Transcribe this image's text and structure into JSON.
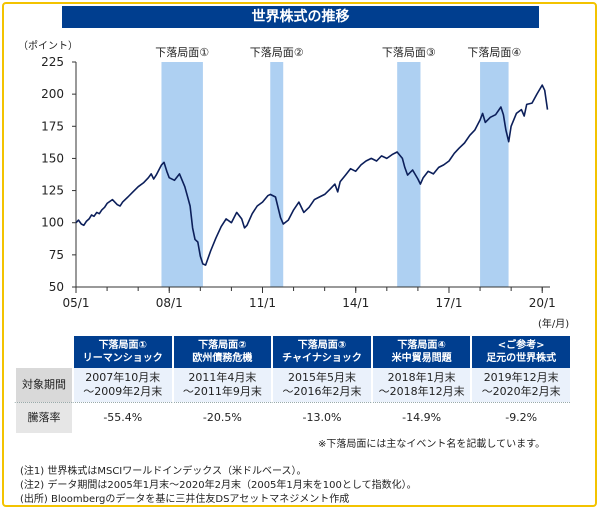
{
  "title": "世界株式の推移",
  "chart_data": {
    "type": "line",
    "ylabel": "（ポイント）",
    "xlabel": "(年/月)",
    "ylim": [
      50,
      225
    ],
    "yticks": [
      50,
      75,
      100,
      125,
      150,
      175,
      200,
      225
    ],
    "xlim": [
      2005.0,
      2020.25
    ],
    "xticks": [
      {
        "label": "05/1",
        "x": 2005.0
      },
      {
        "label": "08/1",
        "x": 2008.0
      },
      {
        "label": "11/1",
        "x": 2011.0
      },
      {
        "label": "14/1",
        "x": 2014.0
      },
      {
        "label": "17/1",
        "x": 2017.0
      },
      {
        "label": "20/1",
        "x": 2020.0
      }
    ],
    "phases": [
      {
        "label": "下落局面①",
        "start": 2007.75,
        "end": 2009.083
      },
      {
        "label": "下落局面②",
        "start": 2011.25,
        "end": 2011.667
      },
      {
        "label": "下落局面③",
        "start": 2015.333,
        "end": 2016.083
      },
      {
        "label": "下落局面④",
        "start": 2018.0,
        "end": 2018.917
      }
    ],
    "series": [
      {
        "name": "MSCIワールドインデックス（米ドルベース）",
        "x": [
          2005.0,
          2005.08,
          2005.17,
          2005.25,
          2005.33,
          2005.42,
          2005.5,
          2005.58,
          2005.67,
          2005.75,
          2005.83,
          2005.92,
          2006.0,
          2006.17,
          2006.33,
          2006.42,
          2006.5,
          2006.67,
          2006.83,
          2007.0,
          2007.17,
          2007.33,
          2007.42,
          2007.5,
          2007.58,
          2007.75,
          2007.83,
          2007.92,
          2008.0,
          2008.17,
          2008.33,
          2008.5,
          2008.58,
          2008.67,
          2008.75,
          2008.83,
          2008.92,
          2009.0,
          2009.08,
          2009.17,
          2009.33,
          2009.5,
          2009.67,
          2009.83,
          2010.0,
          2010.17,
          2010.33,
          2010.42,
          2010.5,
          2010.67,
          2010.83,
          2011.0,
          2011.17,
          2011.25,
          2011.42,
          2011.58,
          2011.67,
          2011.83,
          2012.0,
          2012.17,
          2012.33,
          2012.5,
          2012.67,
          2012.83,
          2013.0,
          2013.17,
          2013.33,
          2013.42,
          2013.5,
          2013.67,
          2013.83,
          2014.0,
          2014.17,
          2014.33,
          2014.5,
          2014.67,
          2014.83,
          2015.0,
          2015.17,
          2015.33,
          2015.5,
          2015.58,
          2015.67,
          2015.83,
          2016.0,
          2016.08,
          2016.17,
          2016.33,
          2016.5,
          2016.67,
          2016.83,
          2017.0,
          2017.17,
          2017.33,
          2017.5,
          2017.67,
          2017.83,
          2018.0,
          2018.08,
          2018.17,
          2018.33,
          2018.5,
          2018.67,
          2018.75,
          2018.83,
          2018.92,
          2019.0,
          2019.17,
          2019.33,
          2019.42,
          2019.5,
          2019.67,
          2019.83,
          2020.0,
          2020.08,
          2020.17
        ],
        "y": [
          100,
          102,
          99,
          98,
          101,
          103,
          106,
          105,
          108,
          107,
          110,
          112,
          115,
          118,
          114,
          113,
          116,
          120,
          124,
          128,
          131,
          135,
          138,
          134,
          137,
          145,
          147,
          140,
          135,
          133,
          138,
          128,
          121,
          113,
          96,
          87,
          85,
          74,
          68,
          67,
          78,
          88,
          97,
          103,
          100,
          108,
          103,
          96,
          98,
          107,
          113,
          116,
          121,
          122,
          120,
          104,
          99,
          102,
          110,
          116,
          108,
          112,
          118,
          120,
          122,
          126,
          130,
          124,
          132,
          137,
          142,
          140,
          145,
          148,
          150,
          148,
          152,
          150,
          153,
          155,
          150,
          143,
          137,
          141,
          134,
          130,
          135,
          140,
          138,
          143,
          145,
          148,
          154,
          158,
          162,
          168,
          172,
          180,
          185,
          178,
          182,
          184,
          190,
          184,
          172,
          163,
          175,
          185,
          188,
          183,
          192,
          193,
          200,
          207,
          203,
          188
        ]
      }
    ]
  },
  "table": {
    "headers": [
      {
        "line1": "下落局面①",
        "line2": "リーマンショック"
      },
      {
        "line1": "下落局面②",
        "line2": "欧州債務危機"
      },
      {
        "line1": "下落局面③",
        "line2": "チャイナショック"
      },
      {
        "line1": "下落局面④",
        "line2": "米中貿易問題"
      },
      {
        "line1": "<ご参考>",
        "line2": "足元の世界株式"
      }
    ],
    "row_period_label": "対象期間",
    "periods": [
      {
        "from": "2007年10月末",
        "to": "～2009年2月末"
      },
      {
        "from": "2011年4月末",
        "to": "～2011年9月末"
      },
      {
        "from": "2015年5月末",
        "to": "～2016年2月末"
      },
      {
        "from": "2018年1月末",
        "to": "～2018年12月末"
      },
      {
        "from": "2019年12月末",
        "to": "～2020年2月末"
      }
    ],
    "row_change_label": "騰落率",
    "changes": [
      "-55.4%",
      "-20.5%",
      "-13.0%",
      "-14.9%",
      "-9.2%"
    ]
  },
  "note_right": "※下落局面には主なイベント名を記載しています。",
  "footnotes": [
    "(注1) 世界株式はMSCIワールドインデックス（米ドルベース）。",
    "(注2) データ期間は2005年1月末～2020年2月末（2005年1月末を100として指数化）。",
    "(出所) Bloombergのデータを基に三井住友DSアセットマネジメント作成"
  ],
  "colors": {
    "accent": "#003e8f",
    "shade": "#aed0f2",
    "border": "#f3c300",
    "line": "#0c1f5a"
  }
}
